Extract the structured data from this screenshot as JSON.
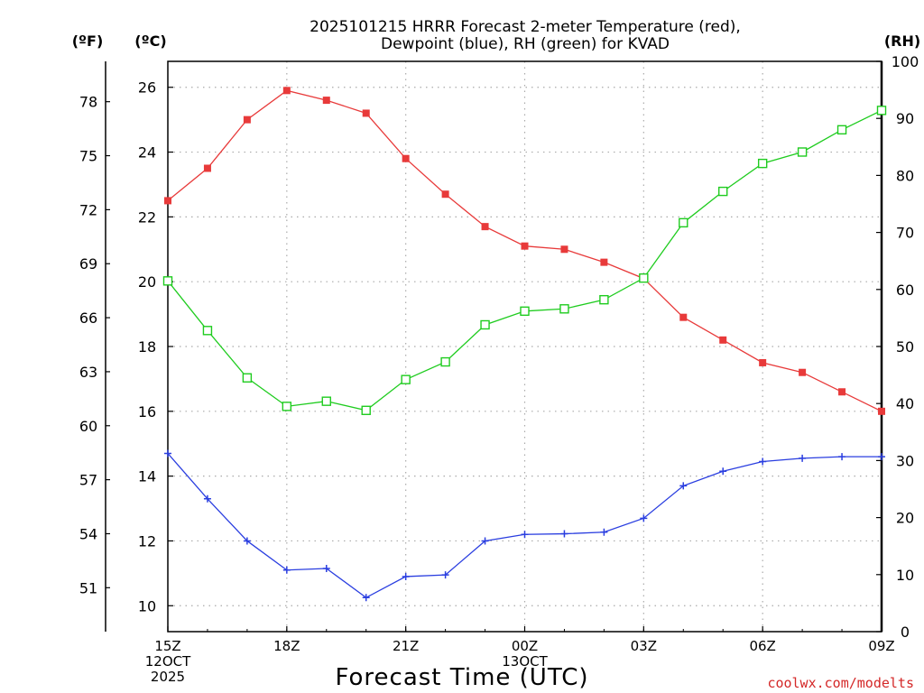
{
  "title_line1": "2025101215 HRRR Forecast 2-meter Temperature (red),",
  "title_line2": "Dewpoint (blue), RH (green) for KVAD",
  "unit_f": "(ºF)",
  "unit_c": "(ºC)",
  "unit_rh": "(RH)",
  "footer": "coolwx.com/modelts",
  "colors": {
    "temperature": "#e83a3a",
    "dewpoint": "#2a3ee0",
    "rh": "#1fcc1f",
    "grid": "#aaaaaa"
  },
  "chart_data": {
    "type": "line",
    "title": "2025101215 HRRR Forecast 2-meter Temperature (red), Dewpoint (blue), RH (green) for KVAD",
    "xlabel": "Forecast Time (UTC)",
    "x_hours": [
      0,
      1,
      2,
      3,
      4,
      5,
      6,
      7,
      8,
      9,
      10,
      11,
      12,
      13,
      14,
      15,
      16,
      17,
      18
    ],
    "x_ticks": [
      {
        "hour": 0,
        "lines": [
          "15Z",
          "12OCT",
          "2025"
        ]
      },
      {
        "hour": 3,
        "lines": [
          "18Z"
        ]
      },
      {
        "hour": 6,
        "lines": [
          "21Z"
        ]
      },
      {
        "hour": 9,
        "lines": [
          "00Z",
          "13OCT"
        ]
      },
      {
        "hour": 12,
        "lines": [
          "03Z"
        ]
      },
      {
        "hour": 15,
        "lines": [
          "06Z"
        ]
      },
      {
        "hour": 18,
        "lines": [
          "09Z"
        ]
      }
    ],
    "y_celsius": {
      "range": [
        9.2,
        26.8
      ],
      "ticks": [
        10,
        12,
        14,
        16,
        18,
        20,
        22,
        24,
        26
      ]
    },
    "y_fahrenheit": {
      "ticks": [
        51,
        54,
        57,
        60,
        63,
        66,
        69,
        72,
        75,
        78
      ]
    },
    "y_rh": {
      "range": [
        0,
        100
      ],
      "ticks": [
        0,
        10,
        20,
        30,
        40,
        50,
        60,
        70,
        80,
        90,
        100
      ]
    },
    "series": [
      {
        "name": "Temperature",
        "unit": "C",
        "color": "red",
        "marker": "filled-square",
        "values": [
          22.5,
          23.5,
          25.0,
          25.9,
          25.6,
          25.2,
          23.8,
          22.7,
          21.7,
          21.1,
          21.0,
          20.6,
          20.1,
          18.9,
          18.2,
          17.5,
          17.2,
          16.6,
          16.0
        ]
      },
      {
        "name": "Dewpoint",
        "unit": "C",
        "color": "blue",
        "marker": "plus",
        "values": [
          14.7,
          13.3,
          12.0,
          11.1,
          11.15,
          10.25,
          10.9,
          10.95,
          12.0,
          12.2,
          12.22,
          12.27,
          12.7,
          13.7,
          14.15,
          14.45,
          14.55,
          14.6,
          14.6
        ]
      },
      {
        "name": "RH",
        "unit": "%",
        "color": "green",
        "marker": "open-square",
        "values": [
          61.5,
          52.8,
          44.5,
          39.5,
          40.4,
          38.8,
          44.2,
          47.3,
          53.8,
          56.2,
          56.6,
          58.2,
          62.0,
          71.7,
          77.2,
          82.1,
          84.1,
          88.0,
          91.4
        ]
      }
    ]
  }
}
